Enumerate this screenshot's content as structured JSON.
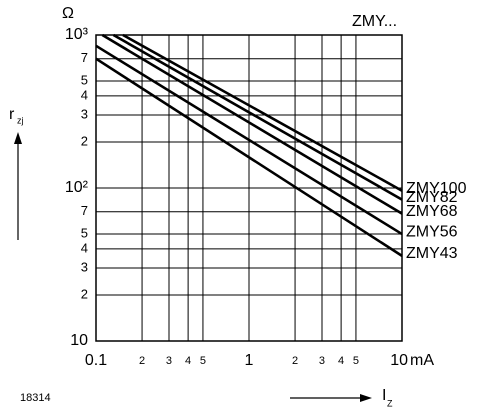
{
  "chart_data": {
    "type": "line",
    "title": "ZMY...",
    "y_unit": "Ω",
    "ylabel": "r",
    "ylabel_sub": "zj",
    "xlabel": "I",
    "xlabel_sub": "Z",
    "x_unit": "mA",
    "figure_id": "18314",
    "log_x": true,
    "log_y": true,
    "grid": true,
    "color": "#000000",
    "xlim": [
      0.1,
      10
    ],
    "ylim": [
      10,
      1000
    ],
    "xticks": [
      0.1,
      {
        "value": 0.2,
        "label": "2"
      },
      {
        "value": 0.3,
        "label": "3"
      },
      {
        "value": 0.4,
        "label": "4"
      },
      {
        "value": 0.5,
        "label": "5"
      },
      1,
      {
        "value": 2,
        "label": "2"
      },
      {
        "value": 3,
        "label": "3"
      },
      {
        "value": 4,
        "label": "4"
      },
      {
        "value": 5,
        "label": "5"
      },
      10
    ],
    "yticks": [
      10,
      {
        "value": 20,
        "label": "2"
      },
      {
        "value": 30,
        "label": "3"
      },
      {
        "value": 40,
        "label": "4"
      },
      {
        "value": 50,
        "label": "5"
      },
      {
        "value": 70,
        "label": "7"
      },
      {
        "value": 100,
        "label": "10²"
      },
      {
        "value": 200,
        "label": "2"
      },
      {
        "value": 300,
        "label": "3"
      },
      {
        "value": 400,
        "label": "4"
      },
      {
        "value": 500,
        "label": "5"
      },
      {
        "value": 700,
        "label": "7"
      },
      {
        "value": 1000,
        "label": "10³"
      }
    ],
    "series": [
      {
        "name": "ZMY100",
        "x": [
          0.15,
          10
        ],
        "values": [
          1000,
          96
        ]
      },
      {
        "name": "ZMY82",
        "x": [
          0.13,
          10
        ],
        "values": [
          1000,
          84
        ]
      },
      {
        "name": "ZMY68",
        "x": [
          0.11,
          10
        ],
        "values": [
          1000,
          68
        ]
      },
      {
        "name": "ZMY56",
        "x": [
          0.1,
          10
        ],
        "values": [
          850,
          50
        ]
      },
      {
        "name": "ZMY43",
        "x": [
          0.1,
          10
        ],
        "values": [
          700,
          36
        ]
      }
    ]
  }
}
